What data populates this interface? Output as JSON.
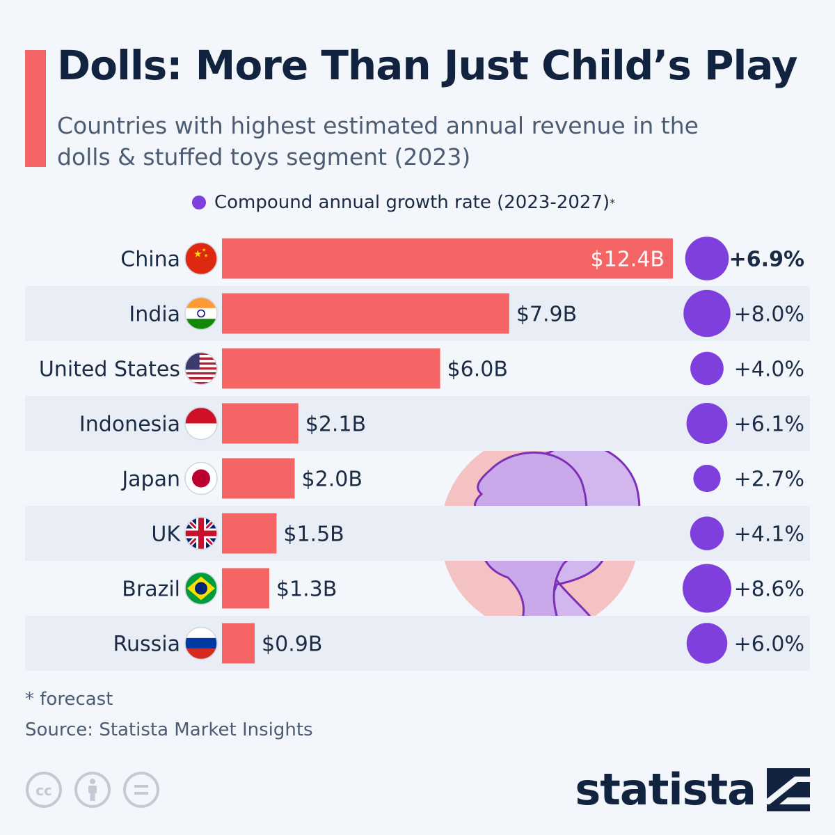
{
  "header": {
    "title": "Dolls: More Than Just Child’s Play",
    "subtitle": "Countries with highest estimated annual revenue in the dolls & stuffed toys segment (2023)"
  },
  "legend": {
    "label": "Compound annual growth rate (2023-2027)",
    "superscript": "*"
  },
  "colors": {
    "bar": "#f56565",
    "bubble": "#7f3fdc",
    "row_stripe": "#e9edf5",
    "text_dark": "#12233f"
  },
  "chart_data": {
    "type": "bar",
    "orientation": "horizontal",
    "categories": [
      "China",
      "India",
      "United States",
      "Indonesia",
      "Japan",
      "UK",
      "Brazil",
      "Russia"
    ],
    "flags": [
      "flag-china-icon",
      "flag-india-icon",
      "flag-usa-icon",
      "flag-indonesia-icon",
      "flag-japan-icon",
      "flag-uk-icon",
      "flag-brazil-icon",
      "flag-russia-icon"
    ],
    "values": [
      12.4,
      7.9,
      6.0,
      2.1,
      2.0,
      1.5,
      1.3,
      0.9
    ],
    "value_labels": [
      "$12.4B",
      "$7.9B",
      "$6.0B",
      "$2.1B",
      "$2.0B",
      "$1.5B",
      "$1.3B",
      "$0.9B"
    ],
    "cagr": [
      6.9,
      8.0,
      4.0,
      6.1,
      2.7,
      4.1,
      8.6,
      6.0
    ],
    "cagr_labels": [
      "+6.9%",
      "+8.0%",
      "+4.0%",
      "+6.1%",
      "+2.7%",
      "+4.1%",
      "+8.6%",
      "+6.0%"
    ]
  },
  "footer": {
    "footnote": "* forecast",
    "source": "Source: Statista Market Insights",
    "brand": "statista"
  }
}
